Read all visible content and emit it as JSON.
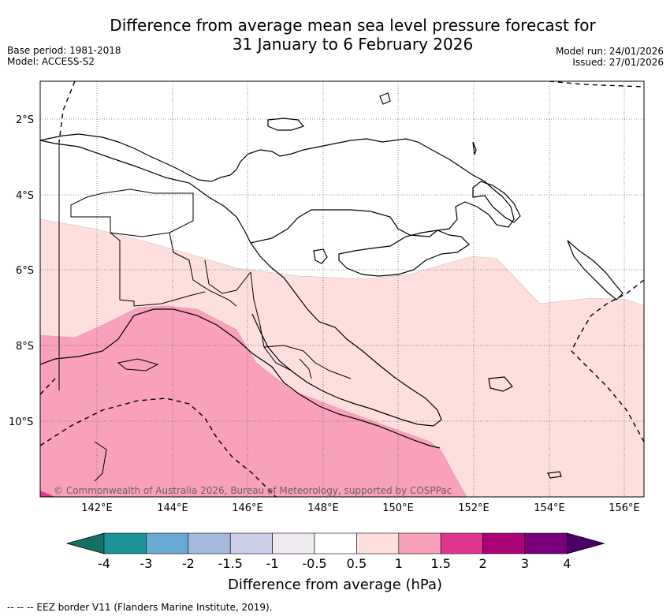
{
  "title": {
    "line1": "Difference from average mean sea level pressure forecast for",
    "line2": "31 January to 6 February 2026"
  },
  "meta_left": {
    "base_period": "Base period: 1981-2018",
    "model": "Model: ACCESS-S2"
  },
  "meta_right": {
    "model_run": "Model run: 24/01/2026",
    "issued": "Issued: 27/01/2026"
  },
  "map": {
    "lat_labels": [
      "2°S",
      "4°S",
      "6°S",
      "8°S",
      "10°S"
    ],
    "lon_labels": [
      "142°E",
      "144°E",
      "146°E",
      "148°E",
      "150°E",
      "152°E",
      "154°E",
      "156°E"
    ],
    "copyright": "© Commonwealth of Australia 2026, Bureau of Meteorology, supported by COSPPac",
    "colors": {
      "band_0.5_1": "#fde0de",
      "band_1_1.5": "#f9a0bb",
      "coast": "#000000",
      "grid": "#555555"
    }
  },
  "colorbar": {
    "title": "Difference from average (hPa)",
    "tick_labels": [
      "-4",
      "-3",
      "-2",
      "-1.5",
      "-1",
      "-0.5",
      "0.5",
      "1",
      "1.5",
      "2",
      "3",
      "4"
    ],
    "colors": [
      "#137064",
      "#1b9399",
      "#68aad3",
      "#a4b9db",
      "#cbcde6",
      "#efeaf0",
      "#ffffff",
      "#fde0de",
      "#f9a0bb",
      "#e0358f",
      "#ab0277",
      "#79007a",
      "#4b0067"
    ]
  },
  "footnote": "--  --  -- EEZ border V11 (Flanders Marine Institute, 2019)."
}
